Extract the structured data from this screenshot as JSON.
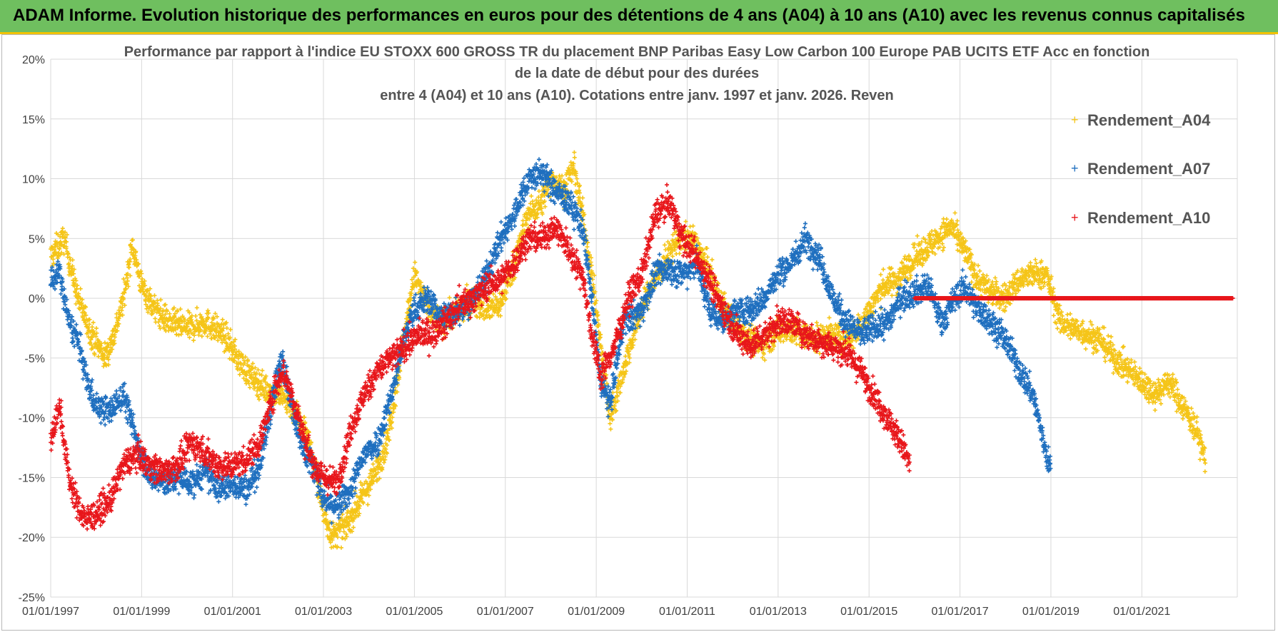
{
  "header": {
    "title": "ADAM Informe. Evolution historique des performances en euros pour des détentions de 4 ans (A04) à 10 ans (A10) avec les revenus connus capitalisés"
  },
  "colors": {
    "A04": "#f5c518",
    "A07": "#1f6fbf",
    "A10": "#e8161b",
    "grid": "#d9d9d9",
    "header_bg": "#6fbf5f"
  },
  "chart_data": {
    "type": "scatter",
    "title_lines": [
      "Performance par rapport à l'indice EU STOXX 600 GROSS TR  du placement BNP Paribas Easy Low Carbon 100 Europe PAB UCITS ETF Acc en fonction",
      "de la date de début pour des durées",
      "entre 4 (A04) et 10 ans (A10). Cotations entre janv. 1997 et janv. 2026. Reven"
    ],
    "ylim": [
      -25,
      20
    ],
    "xlim": [
      1997.0,
      2023.1
    ],
    "yticks": [
      20,
      15,
      10,
      5,
      0,
      -5,
      -10,
      -15,
      -20,
      -25
    ],
    "ytick_labels": [
      "20%",
      "15%",
      "10%",
      "5%",
      "0%",
      "-5%",
      "-10%",
      "-15%",
      "-20%",
      "-25%"
    ],
    "xticks": [
      1997,
      1999,
      2001,
      2003,
      2005,
      2007,
      2009,
      2011,
      2013,
      2015,
      2017,
      2019,
      2021
    ],
    "xtick_labels": [
      "01/01/1997",
      "01/01/1999",
      "01/01/2001",
      "01/01/2003",
      "01/01/2005",
      "01/01/2007",
      "01/01/2009",
      "01/01/2011",
      "01/01/2013",
      "01/01/2015",
      "01/01/2017",
      "01/01/2019",
      "01/01/2021"
    ],
    "legend": {
      "position": "top-right",
      "entries": [
        "Rendement_A04",
        "Rendement_A07",
        "Rendement_A10"
      ]
    },
    "series": [
      {
        "name": "Rendement_A04",
        "color_key": "A04",
        "noise": 1.1,
        "x": [
          1997.0,
          1997.3,
          1997.6,
          1997.9,
          1998.2,
          1998.4,
          1998.6,
          1998.8,
          1999.0,
          1999.3,
          1999.6,
          2000.0,
          2000.4,
          2000.8,
          2001.1,
          2001.4,
          2001.7,
          2002.0,
          2002.3,
          2002.6,
          2002.8,
          2003.0,
          2003.2,
          2003.5,
          2003.8,
          2004.1,
          2004.4,
          2004.7,
          2005.0,
          2005.3,
          2005.6,
          2006.0,
          2006.3,
          2006.6,
          2006.9,
          2007.2,
          2007.5,
          2007.8,
          2008.0,
          2008.3,
          2008.5,
          2008.7,
          2008.9,
          2009.1,
          2009.3,
          2009.6,
          2009.9,
          2010.2,
          2010.5,
          2010.8,
          2011.1,
          2011.4,
          2011.7,
          2012.0,
          2012.3,
          2012.6,
          2012.9,
          2013.2,
          2013.5,
          2013.8,
          2014.1,
          2014.4,
          2014.7,
          2015.0,
          2015.3,
          2015.6,
          2015.9,
          2016.2,
          2016.5,
          2016.8,
          2017.1,
          2017.4,
          2017.7,
          2018.0,
          2018.3,
          2018.6,
          2018.9,
          2019.2,
          2019.5,
          2019.8,
          2020.1,
          2020.4,
          2020.7,
          2021.0,
          2021.3,
          2021.6,
          2021.9,
          2022.2,
          2022.4
        ],
        "y": [
          3.5,
          5.0,
          0.0,
          -3.0,
          -5.0,
          -3.0,
          0.0,
          4.5,
          1.0,
          -1.0,
          -2.0,
          -2.5,
          -2.0,
          -3.0,
          -5.0,
          -6.5,
          -7.5,
          -8.0,
          -9.0,
          -11.0,
          -14.0,
          -18.0,
          -20.0,
          -19.0,
          -17.0,
          -15.0,
          -12.0,
          -5.0,
          2.0,
          -1.0,
          -2.0,
          -1.0,
          0.0,
          -1.0,
          -0.5,
          3.0,
          7.0,
          8.0,
          10.0,
          9.0,
          11.0,
          7.0,
          2.0,
          -4.0,
          -10.0,
          -6.0,
          -2.0,
          1.0,
          3.0,
          5.0,
          5.0,
          3.0,
          0.0,
          -2.0,
          -3.0,
          -4.0,
          -3.0,
          -2.5,
          -3.0,
          -3.5,
          -3.0,
          -3.5,
          -3.0,
          -1.0,
          1.0,
          1.5,
          3.0,
          4.0,
          5.0,
          6.0,
          4.0,
          1.5,
          0.5,
          0.0,
          1.5,
          2.0,
          2.0,
          -2.0,
          -2.5,
          -3.0,
          -3.5,
          -5.0,
          -6.0,
          -7.0,
          -8.0,
          -7.0,
          -9.0,
          -11.0,
          -13.5
        ]
      },
      {
        "name": "Rendement_A07",
        "color_key": "A07",
        "noise": 1.1,
        "x": [
          1997.0,
          1997.2,
          1997.4,
          1997.6,
          1997.8,
          1998.0,
          1998.3,
          1998.6,
          1998.9,
          1999.2,
          1999.5,
          1999.8,
          2000.1,
          2000.4,
          2000.7,
          2001.0,
          2001.3,
          2001.6,
          2001.9,
          2002.1,
          2002.3,
          2002.6,
          2002.8,
          2003.0,
          2003.3,
          2003.6,
          2003.9,
          2004.2,
          2004.5,
          2004.8,
          2005.0,
          2005.3,
          2005.6,
          2006.0,
          2006.3,
          2006.6,
          2006.9,
          2007.2,
          2007.5,
          2007.8,
          2008.1,
          2008.4,
          2008.7,
          2008.9,
          2009.1,
          2009.3,
          2009.6,
          2010.0,
          2010.3,
          2010.6,
          2010.9,
          2011.2,
          2011.5,
          2011.8,
          2012.1,
          2012.4,
          2012.7,
          2013.0,
          2013.3,
          2013.6,
          2013.9,
          2014.2,
          2014.5,
          2014.8,
          2015.1,
          2015.4,
          2015.7,
          2016.0,
          2016.3,
          2016.6,
          2016.9,
          2017.1,
          2017.4,
          2017.7,
          2018.0,
          2018.3,
          2018.6,
          2018.9,
          2019.0
        ],
        "y": [
          1.5,
          2.0,
          -2.0,
          -3.5,
          -7.0,
          -9.0,
          -9.5,
          -8.0,
          -12.0,
          -15.0,
          -15.5,
          -15.0,
          -15.5,
          -14.5,
          -16.0,
          -15.5,
          -16.0,
          -14.0,
          -8.0,
          -5.0,
          -9.0,
          -13.0,
          -14.0,
          -17.0,
          -17.5,
          -16.0,
          -13.0,
          -12.0,
          -8.0,
          -3.0,
          -1.0,
          0.0,
          -1.5,
          -1.0,
          0.0,
          2.0,
          5.0,
          7.0,
          10.0,
          10.5,
          9.0,
          8.0,
          6.0,
          0.0,
          -7.0,
          -9.0,
          -2.0,
          -1.0,
          2.0,
          2.5,
          2.0,
          3.0,
          -1.0,
          -2.0,
          -1.0,
          -1.0,
          0.0,
          2.0,
          3.0,
          5.0,
          3.5,
          0.0,
          -2.0,
          -3.0,
          -2.5,
          -2.0,
          0.0,
          0.5,
          1.0,
          -2.0,
          0.0,
          1.0,
          -1.0,
          -2.0,
          -3.5,
          -6.0,
          -8.0,
          -13.0,
          -14.5
        ]
      },
      {
        "name": "Rendement_A10",
        "color_key": "A10",
        "noise": 1.1,
        "x": [
          1997.0,
          1997.2,
          1997.4,
          1997.6,
          1997.8,
          1998.0,
          1998.3,
          1998.6,
          1998.9,
          1999.2,
          1999.5,
          1999.8,
          2000.1,
          2000.4,
          2000.7,
          2001.0,
          2001.3,
          2001.6,
          2001.9,
          2002.1,
          2002.3,
          2002.6,
          2002.8,
          2003.0,
          2003.3,
          2003.6,
          2003.9,
          2004.2,
          2004.5,
          2004.8,
          2005.1,
          2005.4,
          2005.7,
          2006.0,
          2006.3,
          2006.6,
          2006.9,
          2007.2,
          2007.5,
          2007.8,
          2008.1,
          2008.4,
          2008.7,
          2008.9,
          2009.1,
          2009.4,
          2009.7,
          2010.0,
          2010.3,
          2010.6,
          2010.9,
          2011.2,
          2011.5,
          2011.8,
          2012.1,
          2012.4,
          2012.7,
          2013.0,
          2013.3,
          2013.6,
          2013.9,
          2014.2,
          2014.5,
          2014.8,
          2015.1,
          2015.4,
          2015.7,
          2015.9
        ],
        "y": [
          -12.0,
          -9.0,
          -15.0,
          -17.5,
          -18.5,
          -18.0,
          -17.0,
          -14.0,
          -13.0,
          -14.0,
          -14.5,
          -14.0,
          -12.0,
          -13.0,
          -14.0,
          -14.0,
          -13.5,
          -12.0,
          -8.0,
          -6.0,
          -8.0,
          -12.0,
          -14.0,
          -15.0,
          -15.5,
          -11.0,
          -8.0,
          -6.0,
          -5.0,
          -4.0,
          -3.0,
          -3.0,
          -2.0,
          -0.5,
          0.0,
          1.0,
          1.5,
          3.0,
          5.0,
          5.0,
          6.0,
          4.0,
          2.0,
          -3.0,
          -6.5,
          -4.0,
          0.0,
          2.0,
          7.0,
          8.0,
          5.0,
          3.5,
          1.5,
          -1.0,
          -3.0,
          -4.0,
          -3.0,
          -2.0,
          -2.0,
          -3.0,
          -3.5,
          -4.0,
          -4.5,
          -6.0,
          -8.0,
          -10.0,
          -12.0,
          -14.0
        ]
      }
    ],
    "flat_segment": {
      "series": "Rendement_A10",
      "x_start": 2016.0,
      "x_end": 2023.0,
      "y": 0
    }
  }
}
